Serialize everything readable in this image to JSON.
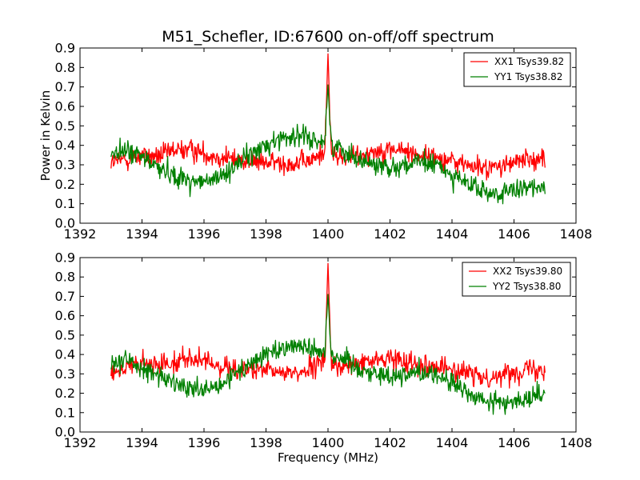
{
  "chart_data": [
    {
      "type": "line",
      "title": "M51_Schefler, ID:67600 on-off/off spectrum",
      "xlabel": "",
      "ylabel": "Power in Kelvin",
      "xlim": [
        1392,
        1408
      ],
      "ylim": [
        0.0,
        0.9
      ],
      "x_ticks": [
        "1392",
        "1394",
        "1396",
        "1398",
        "1400",
        "1402",
        "1404",
        "1406",
        "1408"
      ],
      "y_ticks": [
        "0.0",
        "0.1",
        "0.2",
        "0.3",
        "0.4",
        "0.5",
        "0.6",
        "0.7",
        "0.8",
        "0.9"
      ],
      "grid": false,
      "legend_position": "top-right",
      "series": [
        {
          "name": "XX1 Tsys39.82",
          "color": "#ff0000",
          "x": [
            1393,
            1393.5,
            1394,
            1394.5,
            1395,
            1395.5,
            1396,
            1396.5,
            1397,
            1397.5,
            1398,
            1398.5,
            1399,
            1399.5,
            1399.9,
            1400,
            1400.1,
            1400.5,
            1401,
            1401.5,
            1402,
            1402.5,
            1403,
            1403.5,
            1404,
            1404.5,
            1405,
            1405.5,
            1406,
            1406.5,
            1407
          ],
          "y": [
            0.31,
            0.33,
            0.35,
            0.34,
            0.37,
            0.38,
            0.36,
            0.34,
            0.33,
            0.32,
            0.31,
            0.31,
            0.31,
            0.32,
            0.38,
            0.87,
            0.36,
            0.33,
            0.35,
            0.37,
            0.38,
            0.37,
            0.35,
            0.34,
            0.32,
            0.3,
            0.28,
            0.29,
            0.31,
            0.33,
            0.33
          ]
        },
        {
          "name": "YY1 Tsys38.82",
          "color": "#008000",
          "x": [
            1393,
            1393.5,
            1394,
            1394.5,
            1395,
            1395.5,
            1396,
            1396.5,
            1397,
            1397.5,
            1398,
            1398.5,
            1399,
            1399.5,
            1399.9,
            1400,
            1400.1,
            1400.5,
            1401,
            1401.5,
            1402,
            1402.5,
            1403,
            1403.5,
            1404,
            1404.5,
            1405,
            1405.5,
            1406,
            1406.5,
            1407
          ],
          "y": [
            0.36,
            0.37,
            0.34,
            0.29,
            0.25,
            0.22,
            0.21,
            0.23,
            0.3,
            0.35,
            0.4,
            0.44,
            0.45,
            0.43,
            0.42,
            0.71,
            0.4,
            0.38,
            0.33,
            0.3,
            0.29,
            0.3,
            0.31,
            0.3,
            0.25,
            0.2,
            0.16,
            0.15,
            0.16,
            0.18,
            0.2
          ]
        }
      ]
    },
    {
      "type": "line",
      "title": "",
      "xlabel": "Frequency (MHz)",
      "ylabel": "",
      "xlim": [
        1392,
        1408
      ],
      "ylim": [
        0.0,
        0.9
      ],
      "x_ticks": [
        "1392",
        "1394",
        "1396",
        "1398",
        "1400",
        "1402",
        "1404",
        "1406",
        "1408"
      ],
      "y_ticks": [
        "0.0",
        "0.1",
        "0.2",
        "0.3",
        "0.4",
        "0.5",
        "0.6",
        "0.7",
        "0.8",
        "0.9"
      ],
      "grid": false,
      "legend_position": "top-right",
      "series": [
        {
          "name": "XX2 Tsys39.80",
          "color": "#ff0000",
          "x": [
            1393,
            1393.5,
            1394,
            1394.5,
            1395,
            1395.5,
            1396,
            1396.5,
            1397,
            1397.5,
            1398,
            1398.5,
            1399,
            1399.5,
            1399.9,
            1400,
            1400.1,
            1400.5,
            1401,
            1401.5,
            1402,
            1402.5,
            1403,
            1403.5,
            1404,
            1404.5,
            1405,
            1405.5,
            1406,
            1406.5,
            1407
          ],
          "y": [
            0.31,
            0.33,
            0.35,
            0.34,
            0.37,
            0.38,
            0.36,
            0.34,
            0.33,
            0.32,
            0.31,
            0.31,
            0.31,
            0.32,
            0.38,
            0.87,
            0.36,
            0.33,
            0.35,
            0.37,
            0.38,
            0.37,
            0.35,
            0.34,
            0.32,
            0.3,
            0.28,
            0.29,
            0.31,
            0.33,
            0.33
          ]
        },
        {
          "name": "YY2 Tsys38.80",
          "color": "#008000",
          "x": [
            1393,
            1393.5,
            1394,
            1394.5,
            1395,
            1395.5,
            1396,
            1396.5,
            1397,
            1397.5,
            1398,
            1398.5,
            1399,
            1399.5,
            1399.9,
            1400,
            1400.1,
            1400.5,
            1401,
            1401.5,
            1402,
            1402.5,
            1403,
            1403.5,
            1404,
            1404.5,
            1405,
            1405.5,
            1406,
            1406.5,
            1407
          ],
          "y": [
            0.36,
            0.37,
            0.34,
            0.29,
            0.25,
            0.22,
            0.21,
            0.23,
            0.3,
            0.35,
            0.4,
            0.44,
            0.45,
            0.43,
            0.42,
            0.71,
            0.4,
            0.38,
            0.33,
            0.3,
            0.29,
            0.3,
            0.31,
            0.3,
            0.25,
            0.2,
            0.16,
            0.15,
            0.16,
            0.18,
            0.2
          ]
        }
      ]
    }
  ]
}
